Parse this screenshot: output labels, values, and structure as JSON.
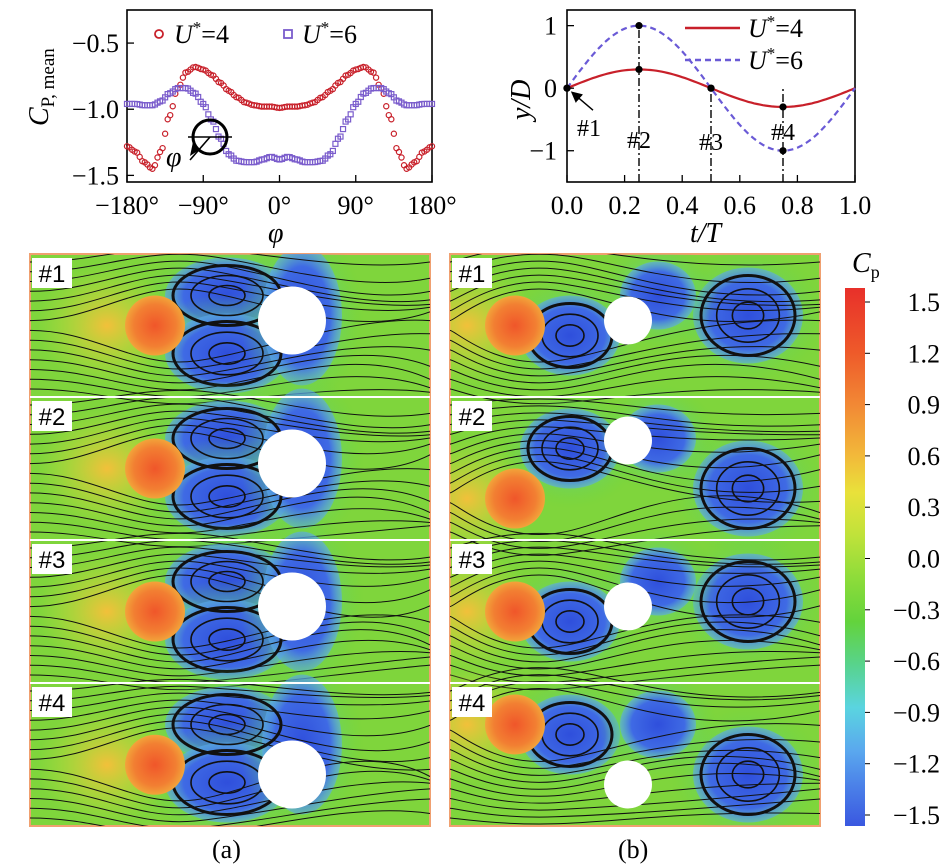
{
  "chart_data": [
    {
      "id": "cp_mean",
      "type": "scatter",
      "ylabel": "C",
      "ylabel_sub": "P, mean",
      "xlabel": "φ",
      "xlim": [
        -180,
        180
      ],
      "ylim": [
        -1.55,
        -0.25
      ],
      "xticks": [
        "−180°",
        "−90°",
        "0°",
        "90°",
        "180°"
      ],
      "xtick_values": [
        -180,
        -90,
        0,
        90,
        180
      ],
      "yticks": [
        "−0.5",
        "−1.0",
        "−1.5"
      ],
      "ytick_values": [
        -0.5,
        -1.0,
        -1.5
      ],
      "inset_label": "φ",
      "legend_position": "top",
      "series": [
        {
          "name": "U*=4",
          "legend_base": "U",
          "legend_sup": "*",
          "legend_rest": "=4",
          "color": "#c8202a",
          "marker": "circle",
          "phi": [
            -180,
            -170,
            -160,
            -150,
            -140,
            -130,
            -120,
            -110,
            -100,
            -90,
            -80,
            -70,
            -60,
            -50,
            -40,
            -30,
            -20,
            -10,
            0,
            10,
            20,
            30,
            40,
            50,
            60,
            70,
            80,
            90,
            100,
            110,
            120,
            130,
            140,
            150,
            160,
            170,
            180
          ],
          "cp": [
            -1.28,
            -1.32,
            -1.4,
            -1.45,
            -1.32,
            -1.05,
            -0.84,
            -0.72,
            -0.68,
            -0.7,
            -0.74,
            -0.8,
            -0.86,
            -0.91,
            -0.95,
            -0.97,
            -0.98,
            -0.98,
            -0.99,
            -0.98,
            -0.98,
            -0.97,
            -0.95,
            -0.91,
            -0.86,
            -0.8,
            -0.74,
            -0.7,
            -0.68,
            -0.72,
            -0.84,
            -1.05,
            -1.32,
            -1.45,
            -1.4,
            -1.32,
            -1.28
          ]
        },
        {
          "name": "U*=6",
          "legend_base": "U",
          "legend_sup": "*",
          "legend_rest": "=6",
          "color": "#7a5ccc",
          "marker": "square",
          "phi": [
            -180,
            -170,
            -160,
            -150,
            -140,
            -130,
            -120,
            -110,
            -100,
            -90,
            -80,
            -70,
            -60,
            -50,
            -40,
            -30,
            -20,
            -10,
            0,
            10,
            20,
            30,
            40,
            50,
            60,
            70,
            80,
            90,
            100,
            110,
            120,
            130,
            140,
            150,
            160,
            170,
            180
          ],
          "cp": [
            -0.96,
            -0.96,
            -0.97,
            -0.97,
            -0.94,
            -0.88,
            -0.84,
            -0.84,
            -0.88,
            -0.96,
            -1.08,
            -1.22,
            -1.34,
            -1.39,
            -1.4,
            -1.4,
            -1.38,
            -1.36,
            -1.38,
            -1.36,
            -1.38,
            -1.4,
            -1.4,
            -1.39,
            -1.34,
            -1.22,
            -1.08,
            -0.96,
            -0.88,
            -0.84,
            -0.84,
            -0.88,
            -0.94,
            -0.97,
            -0.97,
            -0.96,
            -0.96
          ]
        }
      ]
    },
    {
      "id": "displacement",
      "type": "line",
      "ylabel": "y/D",
      "xlabel": "t/T",
      "xlim": [
        0,
        1
      ],
      "ylim": [
        -1.5,
        1.25
      ],
      "xticks": [
        "0.0",
        "0.2",
        "0.4",
        "0.6",
        "0.8",
        "1.0"
      ],
      "xtick_values": [
        0,
        0.2,
        0.4,
        0.6,
        0.8,
        1.0
      ],
      "yticks": [
        "1",
        "0",
        "−1"
      ],
      "ytick_values": [
        1,
        0,
        -1
      ],
      "legend_position": "top-right",
      "series": [
        {
          "name": "U*=4",
          "legend_base": "U",
          "legend_sup": "*",
          "legend_rest": "=4",
          "color": "#c8202a",
          "style": "solid",
          "amplitude": 0.3
        },
        {
          "name": "U*=6",
          "legend_base": "U",
          "legend_sup": "*",
          "legend_rest": "=6",
          "color": "#6a5ad6",
          "style": "dashed",
          "amplitude": 1.0
        }
      ],
      "markers": [
        {
          "label": "#1",
          "t": 0.0
        },
        {
          "label": "#2",
          "t": 0.25
        },
        {
          "label": "#3",
          "t": 0.5
        },
        {
          "label": "#4",
          "t": 0.75
        }
      ]
    },
    {
      "id": "pressure_fields",
      "type": "heatmap",
      "colorbar_title": "C",
      "colorbar_sub": "p",
      "colorbar_range": [
        -1.5,
        1.5
      ],
      "colorbar_ticks": [
        "1.5",
        "1.2",
        "0.9",
        "0.6",
        "0.3",
        "0.0",
        "−0.3",
        "−0.6",
        "−0.9",
        "−1.2",
        "−1.5"
      ],
      "colorbar_tick_values": [
        1.5,
        1.2,
        0.9,
        0.6,
        0.3,
        0.0,
        -0.3,
        -0.6,
        -0.9,
        -1.2,
        -1.5
      ],
      "colorbar_colors": [
        "#e8302a",
        "#ee5a2a",
        "#f28a35",
        "#f2b83a",
        "#e9e13a",
        "#bfe23a",
        "#8ddc3a",
        "#63d33c",
        "#58d38c",
        "#5ad4e0",
        "#5aa8ee",
        "#4a7ee8",
        "#3a58e0"
      ],
      "panel_a": {
        "caption": "(a)",
        "snapshots": [
          "#1",
          "#2",
          "#3",
          "#4"
        ],
        "upstream_offsets": [
          0,
          0,
          0,
          0.12
        ]
      },
      "panel_b": {
        "caption": "(b)",
        "snapshots": [
          "#1",
          "#2",
          "#3",
          "#4"
        ],
        "upstream_offsets": [
          0,
          0.35,
          0,
          -0.35
        ]
      }
    }
  ],
  "colors": {
    "panel_border": "#f0a070",
    "background_field": "#7fd53c",
    "cylinder_fixed": "#ffffff",
    "streamline": "#111111"
  }
}
